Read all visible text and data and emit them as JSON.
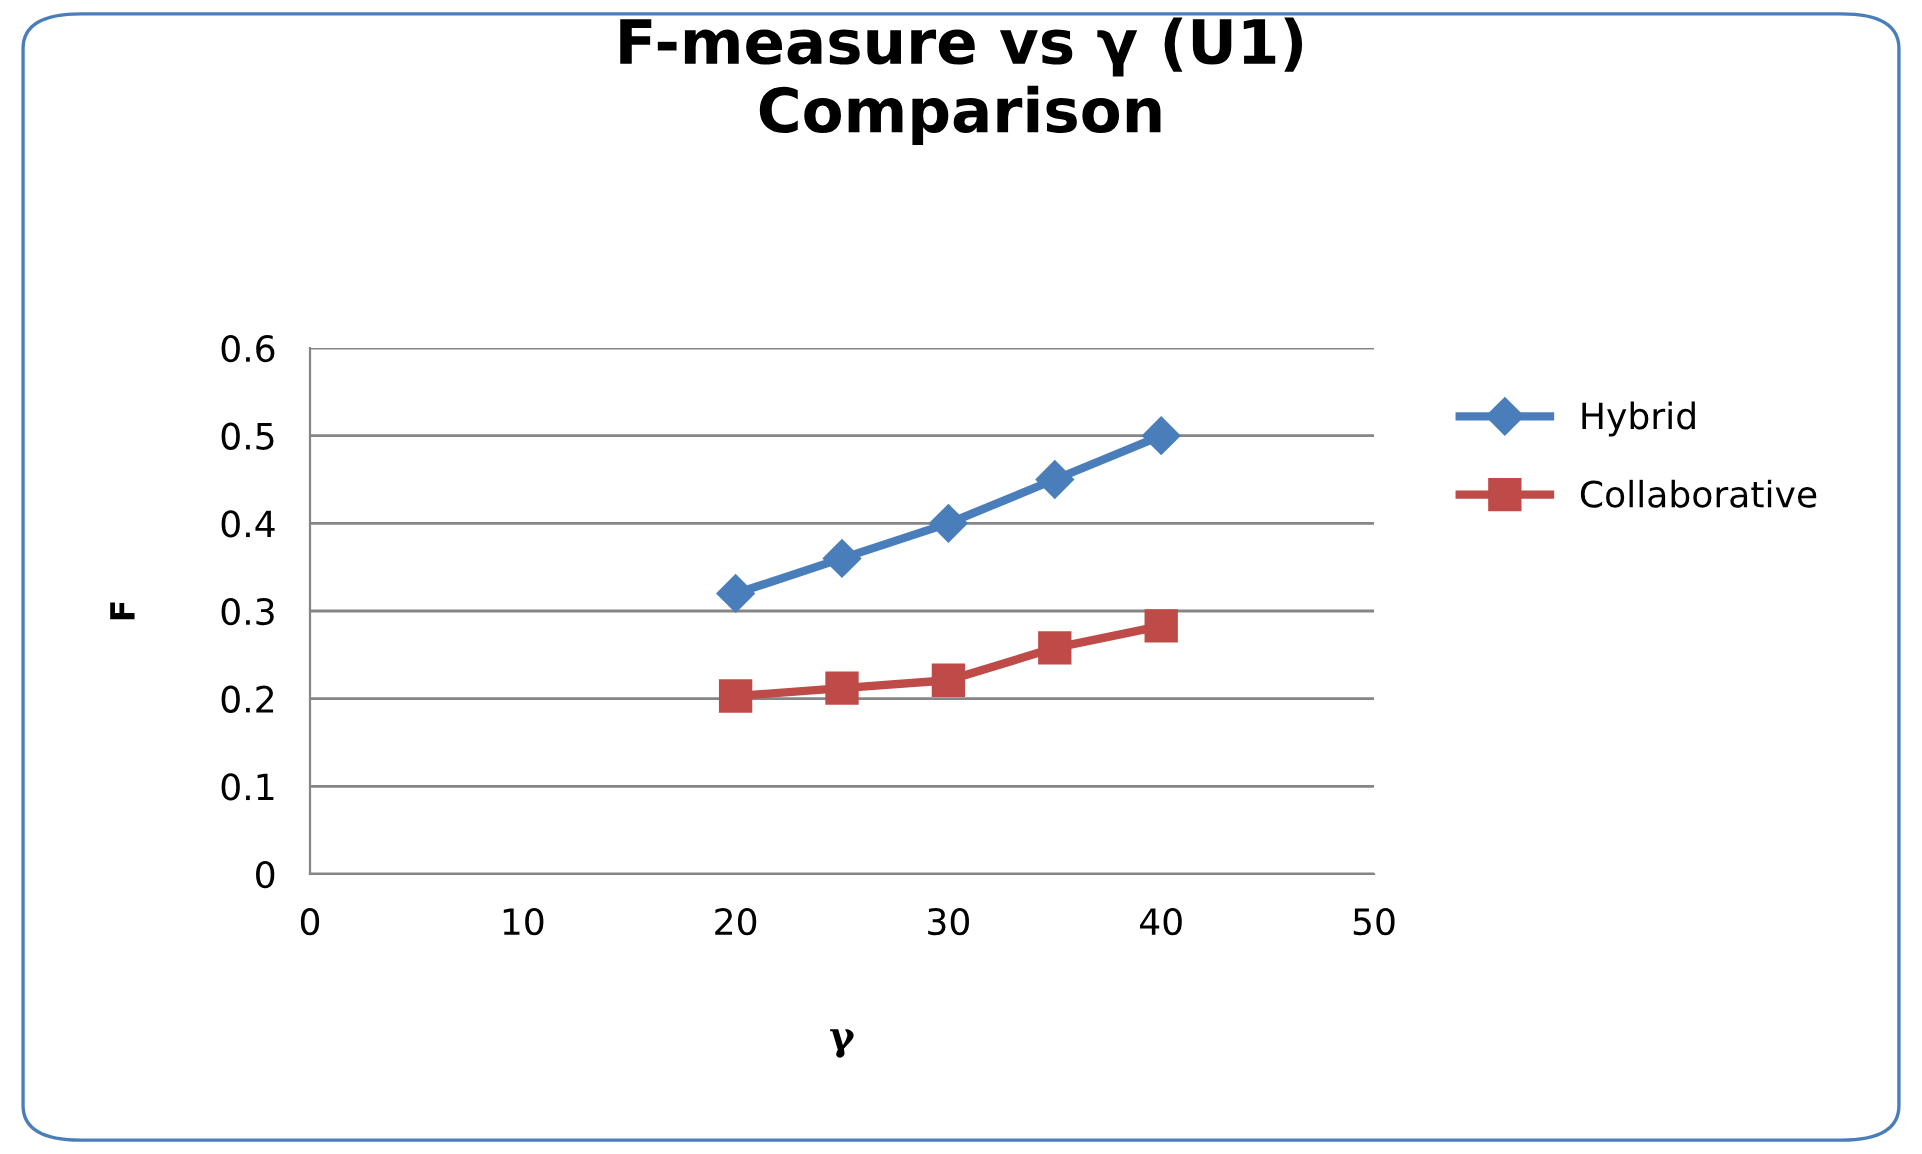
{
  "chart_data": {
    "type": "line",
    "title": "F-measure vs γ (U1)\nComparison",
    "xlabel": "γ",
    "ylabel": "F",
    "x": [
      20,
      25,
      30,
      35,
      40
    ],
    "series": [
      {
        "name": "Hybrid",
        "color": "#4a7ebb",
        "values": [
          0.32,
          0.36,
          0.4,
          0.45,
          0.5
        ],
        "marker": "diamond"
      },
      {
        "name": "Collaborative",
        "color": "#be4b48",
        "values": [
          0.203,
          0.212,
          0.221,
          0.258,
          0.283
        ],
        "marker": "square"
      }
    ],
    "xlim": [
      0,
      50
    ],
    "xticks": [
      0,
      10,
      20,
      30,
      40,
      50
    ],
    "ylim": [
      0,
      0.6
    ],
    "yticks": [
      0,
      0.1,
      0.2,
      0.3,
      0.4,
      0.5,
      0.6
    ],
    "grid": "y",
    "legend": "right",
    "line_style": "solid"
  }
}
